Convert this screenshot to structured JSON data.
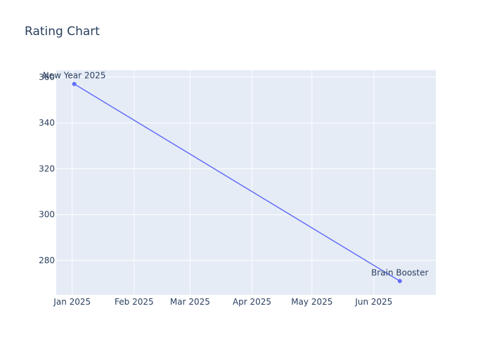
{
  "chart_data": {
    "type": "line",
    "title": "Rating Chart",
    "xlabel": "",
    "ylabel": "",
    "x_ticks": [
      {
        "date": "2025-01-01",
        "label": "Jan 2025"
      },
      {
        "date": "2025-02-01",
        "label": "Feb 2025"
      },
      {
        "date": "2025-03-01",
        "label": "Mar 2025"
      },
      {
        "date": "2025-04-01",
        "label": "Apr 2025"
      },
      {
        "date": "2025-05-01",
        "label": "May 2025"
      },
      {
        "date": "2025-06-01",
        "label": "Jun 2025"
      }
    ],
    "y_ticks": [
      280,
      300,
      320,
      340,
      360
    ],
    "xlim": [
      "2024-12-24",
      "2025-07-02"
    ],
    "ylim": [
      265,
      363
    ],
    "grid": true,
    "series": [
      {
        "color": "#636efa",
        "points": [
          {
            "x": "2025-01-02",
            "y": 357,
            "label": "New Year 2025"
          },
          {
            "x": "2025-06-14",
            "y": 271,
            "label": "Brain Booster"
          }
        ]
      }
    ]
  }
}
